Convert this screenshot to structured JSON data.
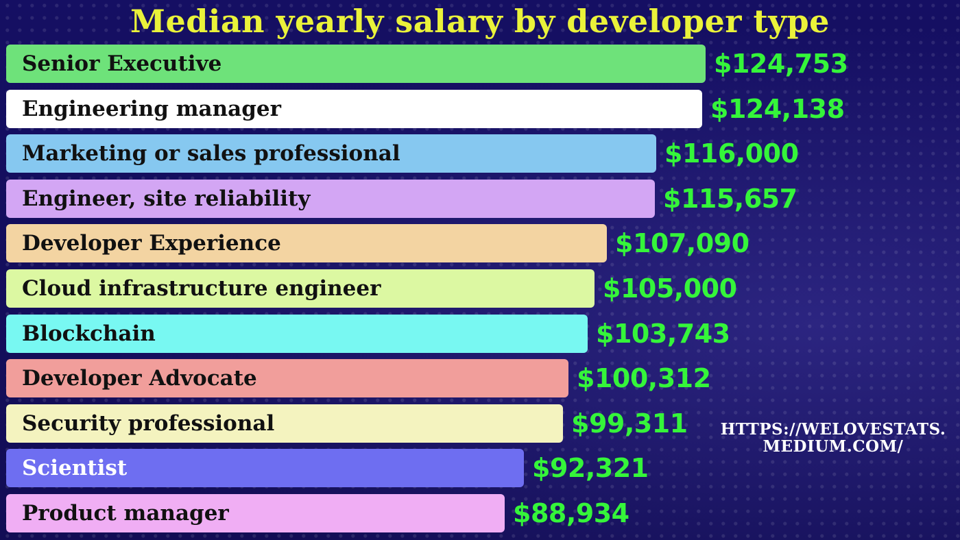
{
  "chart_data": {
    "type": "bar",
    "orientation": "horizontal",
    "title": "Median yearly salary by developer type",
    "categories": [
      "Senior Executive",
      "Engineering manager",
      "Marketing or sales professional",
      "Engineer, site reliability",
      "Developer Experience",
      "Cloud infrastructure engineer",
      "Blockchain",
      "Developer Advocate",
      "Security professional",
      "Scientist",
      "Product manager"
    ],
    "values": [
      124753,
      124138,
      116000,
      115657,
      107090,
      105000,
      103743,
      100312,
      99311,
      92321,
      88934
    ],
    "value_labels": [
      "$124,753",
      "$124,138",
      "$116,000",
      "$115,657",
      "$107,090",
      "$105,000",
      "$103,743",
      "$100,312",
      "$99,311",
      "$92,321",
      "$88,934"
    ],
    "bar_colors": [
      "#6ee27a",
      "#ffffff",
      "#86c8f0",
      "#d3a6f4",
      "#f3d4a2",
      "#dcf8a2",
      "#78f8f2",
      "#f19e9b",
      "#f4f3bf",
      "#6e6ef1",
      "#f0aef4"
    ],
    "label_colors": [
      "#111111",
      "#111111",
      "#111111",
      "#111111",
      "#111111",
      "#111111",
      "#111111",
      "#111111",
      "#111111",
      "#ffffff",
      "#111111"
    ],
    "xlabel": "",
    "ylabel": "",
    "grid": false,
    "legend": "none"
  },
  "watermark": {
    "line1": "HTTPS://WELOVESTATS.",
    "line2": "MEDIUM.COM/"
  },
  "colors": {
    "background": "#140f5e",
    "title": "#eaf23a",
    "value_text": "#35f53a"
  }
}
